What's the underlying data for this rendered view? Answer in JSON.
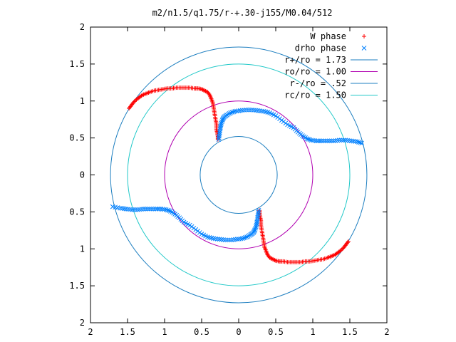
{
  "chart_data": {
    "type": "scatter",
    "title": "m2/n1.5/q1.75/r-+.30-j155/M0.04/512",
    "xlabel": "",
    "ylabel": "",
    "xlim": [
      -2,
      2
    ],
    "ylim": [
      -2,
      2
    ],
    "x_ticks": [
      {
        "value": -2,
        "label": "2"
      },
      {
        "value": -1.5,
        "label": "1.5"
      },
      {
        "value": -1,
        "label": "1"
      },
      {
        "value": -0.5,
        "label": "0.5"
      },
      {
        "value": 0,
        "label": "0"
      },
      {
        "value": 0.5,
        "label": "0.5"
      },
      {
        "value": 1,
        "label": "1"
      },
      {
        "value": 1.5,
        "label": "1.5"
      },
      {
        "value": 2,
        "label": "2"
      }
    ],
    "y_ticks": [
      {
        "value": 2,
        "label": "2"
      },
      {
        "value": 1.5,
        "label": "1.5"
      },
      {
        "value": 1,
        "label": "1"
      },
      {
        "value": 0.5,
        "label": "0.5"
      },
      {
        "value": 0,
        "label": "0"
      },
      {
        "value": -0.5,
        "label": "0.5"
      },
      {
        "value": -1,
        "label": "1"
      },
      {
        "value": -1.5,
        "label": "1.5"
      },
      {
        "value": -2,
        "label": "2"
      }
    ],
    "grid": false,
    "legend_position": "top-right",
    "legend": [
      {
        "label": "W phase",
        "kind": "marker",
        "marker": "plus",
        "color": "#ff0000"
      },
      {
        "label": "drho phase",
        "kind": "marker",
        "marker": "cross",
        "color": "#0080ff"
      },
      {
        "label": "r+/ro = 1.73",
        "kind": "line",
        "color": "#1e7fc0"
      },
      {
        "label": "ro/ro = 1.00",
        "kind": "line",
        "color": "#b000b0"
      },
      {
        "label": "r-/ro = .52",
        "kind": "line",
        "color": "#1e7fc0"
      },
      {
        "label": "rc/ro = 1.50",
        "kind": "line",
        "color": "#20c8c8"
      }
    ],
    "circles": [
      {
        "radius": 1.73,
        "color": "#1e7fc0"
      },
      {
        "radius": 1.0,
        "color": "#b000b0"
      },
      {
        "radius": 0.52,
        "color": "#1e7fc0"
      },
      {
        "radius": 1.5,
        "color": "#20c8c8"
      }
    ],
    "series": [
      {
        "name": "W phase",
        "marker": "plus",
        "color": "#ff0000",
        "x": [
          -1.48,
          -1.45,
          -1.42,
          -1.38,
          -1.34,
          -1.3,
          -1.25,
          -1.2,
          -1.14,
          -1.08,
          -1.02,
          -0.96,
          -0.9,
          -0.84,
          -0.78,
          -0.72,
          -0.66,
          -0.6,
          -0.55,
          -0.5,
          -0.46,
          -0.42,
          -0.39,
          -0.37,
          -0.35,
          -0.34,
          -0.33,
          -0.32,
          -0.31,
          -0.3,
          -0.3,
          -0.29,
          -0.28,
          -0.28,
          1.48,
          1.45,
          1.42,
          1.38,
          1.34,
          1.3,
          1.25,
          1.2,
          1.14,
          1.08,
          1.02,
          0.96,
          0.9,
          0.84,
          0.78,
          0.72,
          0.66,
          0.6,
          0.55,
          0.5,
          0.46,
          0.42,
          0.39,
          0.37,
          0.35,
          0.34,
          0.33,
          0.32,
          0.31,
          0.3,
          0.3,
          0.29,
          0.28,
          0.28
        ],
        "y": [
          0.9,
          0.94,
          0.98,
          1.02,
          1.05,
          1.08,
          1.1,
          1.12,
          1.14,
          1.15,
          1.16,
          1.17,
          1.17,
          1.18,
          1.18,
          1.18,
          1.18,
          1.17,
          1.17,
          1.16,
          1.14,
          1.12,
          1.08,
          1.03,
          0.98,
          0.92,
          0.86,
          0.8,
          0.74,
          0.68,
          0.62,
          0.57,
          0.52,
          0.48,
          -0.9,
          -0.94,
          -0.98,
          -1.02,
          -1.05,
          -1.08,
          -1.1,
          -1.12,
          -1.14,
          -1.15,
          -1.16,
          -1.17,
          -1.17,
          -1.18,
          -1.18,
          -1.18,
          -1.18,
          -1.17,
          -1.17,
          -1.16,
          -1.14,
          -1.12,
          -1.08,
          -1.03,
          -0.98,
          -0.92,
          -0.86,
          -0.8,
          -0.74,
          -0.68,
          -0.62,
          -0.57,
          -0.52,
          -0.48
        ]
      },
      {
        "name": "drho phase",
        "marker": "cross",
        "color": "#0080ff",
        "x": [
          -0.27,
          -0.26,
          -0.25,
          -0.24,
          -0.22,
          -0.2,
          -0.16,
          -0.11,
          -0.05,
          0.02,
          0.1,
          0.18,
          0.26,
          0.34,
          0.42,
          0.5,
          0.58,
          0.66,
          0.74,
          0.8,
          0.86,
          0.92,
          0.98,
          1.05,
          1.12,
          1.2,
          1.28,
          1.36,
          1.44,
          1.52,
          1.6,
          1.66,
          0.27,
          0.26,
          0.25,
          0.24,
          0.22,
          0.2,
          0.16,
          0.11,
          0.05,
          -0.02,
          -0.1,
          -0.18,
          -0.26,
          -0.34,
          -0.42,
          -0.5,
          -0.58,
          -0.66,
          -0.74,
          -0.8,
          -0.86,
          -0.92,
          -0.98,
          -1.05,
          -1.12,
          -1.2,
          -1.28,
          -1.36,
          -1.44,
          -1.52,
          -1.6,
          -1.7
        ],
        "y": [
          0.48,
          0.55,
          0.62,
          0.68,
          0.74,
          0.78,
          0.81,
          0.84,
          0.86,
          0.87,
          0.88,
          0.88,
          0.87,
          0.86,
          0.84,
          0.8,
          0.74,
          0.68,
          0.64,
          0.58,
          0.53,
          0.49,
          0.47,
          0.46,
          0.46,
          0.46,
          0.46,
          0.47,
          0.47,
          0.46,
          0.45,
          0.43,
          -0.48,
          -0.55,
          -0.62,
          -0.68,
          -0.74,
          -0.78,
          -0.81,
          -0.84,
          -0.86,
          -0.87,
          -0.88,
          -0.88,
          -0.87,
          -0.86,
          -0.84,
          -0.8,
          -0.74,
          -0.68,
          -0.64,
          -0.58,
          -0.53,
          -0.49,
          -0.47,
          -0.46,
          -0.46,
          -0.46,
          -0.46,
          -0.47,
          -0.47,
          -0.46,
          -0.45,
          -0.43
        ]
      }
    ]
  }
}
